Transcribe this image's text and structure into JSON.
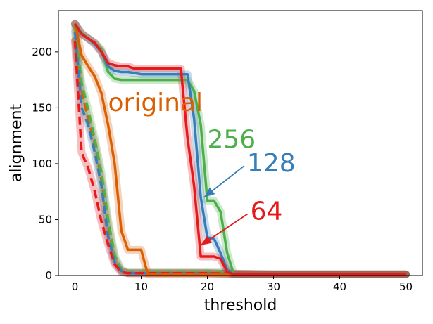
{
  "chart_data": {
    "type": "line",
    "title": "",
    "xlabel": "threshold",
    "ylabel": "alignment",
    "xlim": [
      -2.5,
      52.5
    ],
    "ylim": [
      0,
      237
    ],
    "xticks": [
      0,
      10,
      20,
      30,
      40,
      50
    ],
    "yticks": [
      0,
      50,
      100,
      150,
      200
    ],
    "grid": false,
    "legend": "none",
    "annotations": [
      {
        "label": "original",
        "color": "#d95f02",
        "text_at": [
          5,
          147
        ],
        "arrow": false
      },
      {
        "label": "256",
        "color": "#4daf4a",
        "text_at": [
          20,
          114
        ],
        "arrow": false
      },
      {
        "label": "128",
        "color": "#377eb8",
        "text_at": [
          26,
          93
        ],
        "arrow": true,
        "arrow_to": [
          19.5,
          70
        ]
      },
      {
        "label": "64",
        "color": "#e41a1c",
        "text_at": [
          26.5,
          50
        ],
        "arrow": true,
        "arrow_to": [
          19,
          27
        ]
      }
    ],
    "series": [
      {
        "name": "original",
        "style": "solid",
        "color": "#d95f02",
        "x": [
          0,
          1,
          2,
          3,
          4,
          5,
          6,
          7,
          8,
          9,
          10,
          11,
          12,
          15,
          20,
          25,
          30,
          40,
          50
        ],
        "y": [
          225,
          197,
          187,
          178,
          163,
          135,
          100,
          40,
          23,
          23,
          23,
          1,
          1,
          1,
          1,
          1,
          1,
          1,
          1
        ]
      },
      {
        "name": "256",
        "style": "solid",
        "color": "#4daf4a",
        "x": [
          0,
          1,
          2,
          3,
          4,
          5,
          6,
          7,
          8,
          10,
          15,
          16,
          17,
          18,
          19,
          20,
          21,
          22,
          23,
          24,
          25,
          30,
          40,
          50
        ],
        "y": [
          225,
          217,
          212,
          208,
          202,
          182,
          176,
          175,
          175,
          175,
          175,
          175,
          175,
          165,
          135,
          67,
          67,
          57,
          20,
          1,
          1,
          1,
          1,
          1
        ]
      },
      {
        "name": "128",
        "style": "solid",
        "color": "#377eb8",
        "x": [
          0,
          1,
          2,
          3,
          4,
          5,
          6,
          7,
          8,
          10,
          15,
          16,
          17,
          18,
          19,
          20,
          21,
          22,
          23,
          24,
          25,
          30,
          40,
          50
        ],
        "y": [
          225,
          216,
          212,
          207,
          200,
          187,
          183,
          182,
          182,
          180,
          180,
          180,
          180,
          140,
          70,
          34,
          33,
          20,
          5,
          1,
          1,
          1,
          1,
          1
        ]
      },
      {
        "name": "64",
        "style": "solid",
        "color": "#e41a1c",
        "x": [
          0,
          1,
          2,
          3,
          4,
          5,
          6,
          7,
          8,
          9,
          10,
          15,
          16,
          17,
          18,
          19,
          20,
          21,
          22,
          23,
          24,
          30,
          40,
          50
        ],
        "y": [
          225,
          216,
          212,
          208,
          200,
          190,
          188,
          187,
          187,
          185,
          185,
          185,
          185,
          123,
          80,
          17,
          17,
          17,
          15,
          3,
          1,
          1,
          1,
          1
        ]
      },
      {
        "name": "original-dashed",
        "style": "dashed",
        "color": "#d95f02",
        "x": [
          0,
          1,
          2,
          3,
          4,
          5,
          6,
          7,
          8,
          10,
          20,
          30,
          40,
          50
        ],
        "y": [
          210,
          165,
          140,
          118,
          85,
          45,
          15,
          4,
          2,
          2,
          2,
          1,
          1,
          1
        ]
      },
      {
        "name": "256-dashed",
        "style": "dashed",
        "color": "#4daf4a",
        "x": [
          0,
          1,
          2,
          3,
          4,
          5,
          6,
          7,
          8,
          10,
          20,
          23,
          24,
          30,
          40,
          50
        ],
        "y": [
          222,
          172,
          148,
          122,
          92,
          50,
          18,
          5,
          3,
          3,
          3,
          3,
          1,
          1,
          1,
          1
        ]
      },
      {
        "name": "128-dashed",
        "style": "dashed",
        "color": "#377eb8",
        "x": [
          0,
          1,
          2,
          3,
          4,
          5,
          6,
          7,
          8,
          10,
          20,
          25,
          30,
          40,
          50
        ],
        "y": [
          218,
          150,
          135,
          110,
          80,
          35,
          12,
          4,
          2,
          2,
          2,
          1,
          1,
          1,
          1
        ]
      },
      {
        "name": "64-dashed",
        "style": "dashed",
        "color": "#e41a1c",
        "x": [
          0,
          1,
          2,
          3,
          4,
          5,
          6,
          7,
          8,
          10,
          20,
          30,
          40,
          50
        ],
        "y": [
          210,
          110,
          96,
          75,
          48,
          28,
          10,
          3,
          2,
          2,
          2,
          1,
          1,
          1
        ]
      }
    ]
  }
}
